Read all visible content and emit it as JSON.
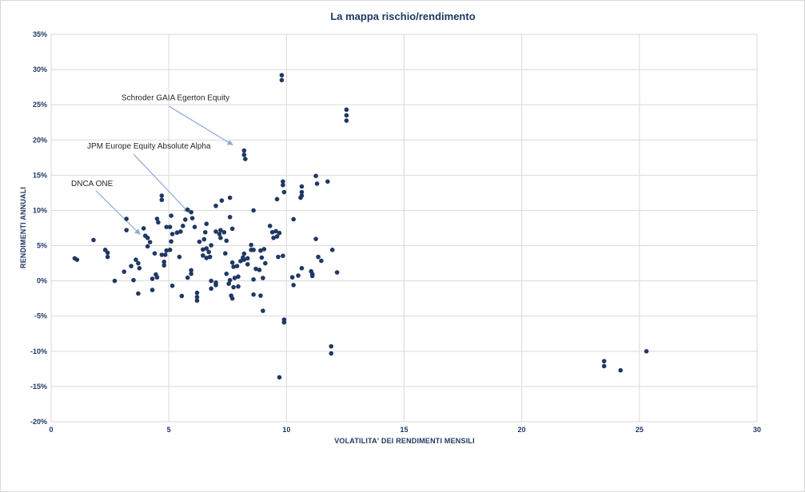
{
  "chart_data": {
    "type": "scatter",
    "title": "La mappa rischio/rendimento",
    "xlabel": "VOLATILITA' DEI RENDIMENTI MENSILI",
    "ylabel": "RENDIMENTI ANNUALI",
    "xlim": [
      0,
      30
    ],
    "ylim": [
      -20,
      35
    ],
    "grid": true,
    "legend": "none",
    "x_ticks": [
      {
        "value": 0,
        "label": "0"
      },
      {
        "value": 5,
        "label": "5"
      },
      {
        "value": 10,
        "label": "10"
      },
      {
        "value": 15,
        "label": "15"
      },
      {
        "value": 20,
        "label": "20"
      },
      {
        "value": 25,
        "label": "25"
      },
      {
        "value": 30,
        "label": "30"
      }
    ],
    "y_ticks": [
      {
        "value": 35,
        "label": "35%"
      },
      {
        "value": 30,
        "label": "30%"
      },
      {
        "value": 25,
        "label": "25%"
      },
      {
        "value": 20,
        "label": "20%"
      },
      {
        "value": 15,
        "label": "15%"
      },
      {
        "value": 10,
        "label": "10%"
      },
      {
        "value": 5,
        "label": "5%"
      },
      {
        "value": 0,
        "label": "0%"
      },
      {
        "value": -5,
        "label": "-5%"
      },
      {
        "value": -10,
        "label": "-10%"
      },
      {
        "value": -15,
        "label": "-15%"
      },
      {
        "value": -20,
        "label": "-20%"
      }
    ],
    "colors": {
      "point": "#1F3864",
      "grid": "#D9D9D9",
      "axis_text": "#1F3864",
      "title_text": "#1F3864",
      "annotation_text": "#262626",
      "arrow": "#8FAADC"
    },
    "annotations": [
      {
        "label": "Schroder GAIA Egerton Equity",
        "text_x": 2.99,
        "text_y": 26.0,
        "arrow": {
          "x1": 5.0,
          "y1": 24.8,
          "x2": 7.72,
          "y2": 19.3
        }
      },
      {
        "label": "JPM Europe Equity Absolute Alpha",
        "text_x": 1.53,
        "text_y": 19.1,
        "arrow": {
          "x1": 3.5,
          "y1": 18.0,
          "x2": 5.85,
          "y2": 9.7
        }
      },
      {
        "label": "DNCA ONE",
        "text_x": 0.85,
        "text_y": 13.8,
        "arrow": {
          "x1": 1.9,
          "y1": 12.8,
          "x2": 3.78,
          "y2": 6.6
        }
      }
    ],
    "points": [
      [
        1.0,
        3.2
      ],
      [
        1.1,
        3.0
      ],
      [
        1.8,
        5.8
      ],
      [
        2.3,
        4.4
      ],
      [
        2.4,
        4.0
      ],
      [
        2.4,
        3.4
      ],
      [
        2.7,
        0.0
      ],
      [
        3.1,
        1.3
      ],
      [
        3.2,
        8.8
      ],
      [
        3.2,
        7.2
      ],
      [
        3.4,
        2.1
      ],
      [
        3.5,
        0.1
      ],
      [
        3.6,
        3.0
      ],
      [
        3.7,
        2.5
      ],
      [
        3.75,
        1.8
      ],
      [
        3.7,
        -1.8
      ],
      [
        3.93,
        7.45
      ],
      [
        4.0,
        6.4
      ],
      [
        4.1,
        6.1
      ],
      [
        4.2,
        5.5
      ],
      [
        4.1,
        4.9
      ],
      [
        4.3,
        -1.3
      ],
      [
        4.4,
        3.9
      ],
      [
        4.3,
        0.3
      ],
      [
        4.45,
        0.9
      ],
      [
        4.5,
        0.5
      ],
      [
        4.5,
        8.8
      ],
      [
        4.55,
        8.3
      ],
      [
        4.7,
        12.1
      ],
      [
        4.7,
        11.5
      ],
      [
        4.7,
        3.7
      ],
      [
        4.85,
        3.7
      ],
      [
        4.8,
        2.7
      ],
      [
        4.8,
        2.2
      ],
      [
        4.9,
        4.3
      ],
      [
        5.05,
        4.4
      ],
      [
        4.9,
        7.65
      ],
      [
        5.05,
        7.65
      ],
      [
        5.1,
        9.25
      ],
      [
        5.15,
        6.65
      ],
      [
        5.35,
        6.85
      ],
      [
        5.5,
        7.0
      ],
      [
        5.1,
        5.6
      ],
      [
        5.45,
        3.4
      ],
      [
        5.15,
        -0.7
      ],
      [
        5.55,
        -2.15
      ],
      [
        5.6,
        7.8
      ],
      [
        5.7,
        8.7
      ],
      [
        5.8,
        10.1
      ],
      [
        5.95,
        9.75
      ],
      [
        6.0,
        8.9
      ],
      [
        6.1,
        7.65
      ],
      [
        5.95,
        1.5
      ],
      [
        5.95,
        1.0
      ],
      [
        5.8,
        0.45
      ],
      [
        6.2,
        -1.7
      ],
      [
        6.2,
        -2.3
      ],
      [
        6.2,
        -2.8
      ],
      [
        6.3,
        5.55
      ],
      [
        6.5,
        5.9
      ],
      [
        6.55,
        6.9
      ],
      [
        6.6,
        8.1
      ],
      [
        6.45,
        4.45
      ],
      [
        6.6,
        4.6
      ],
      [
        6.7,
        4.1
      ],
      [
        6.8,
        5.05
      ],
      [
        6.45,
        3.6
      ],
      [
        6.6,
        3.25
      ],
      [
        6.75,
        3.4
      ],
      [
        6.8,
        0.0
      ],
      [
        7.0,
        -0.25
      ],
      [
        6.8,
        -1.1
      ],
      [
        7.0,
        -0.6
      ],
      [
        7.0,
        10.65
      ],
      [
        7.25,
        11.4
      ],
      [
        7.6,
        11.8
      ],
      [
        7.0,
        7.0
      ],
      [
        7.2,
        7.2
      ],
      [
        7.15,
        6.65
      ],
      [
        7.35,
        6.9
      ],
      [
        7.2,
        6.1
      ],
      [
        7.45,
        5.7
      ],
      [
        7.6,
        9.05
      ],
      [
        7.7,
        7.4
      ],
      [
        7.4,
        3.9
      ],
      [
        7.7,
        2.6
      ],
      [
        7.75,
        2.0
      ],
      [
        7.9,
        2.1
      ],
      [
        7.45,
        1.0
      ],
      [
        7.6,
        0.1
      ],
      [
        7.8,
        0.4
      ],
      [
        7.95,
        0.6
      ],
      [
        7.55,
        -0.4
      ],
      [
        7.75,
        -0.9
      ],
      [
        7.95,
        -0.8
      ],
      [
        7.65,
        -2.1
      ],
      [
        7.7,
        -2.5
      ],
      [
        8.05,
        2.8
      ],
      [
        8.2,
        3.0
      ],
      [
        8.2,
        18.5
      ],
      [
        8.2,
        17.9
      ],
      [
        8.25,
        17.3
      ],
      [
        8.2,
        3.85
      ],
      [
        8.15,
        3.3
      ],
      [
        8.35,
        3.2
      ],
      [
        8.35,
        2.35
      ],
      [
        8.5,
        5.1
      ],
      [
        8.5,
        4.4
      ],
      [
        8.6,
        4.4
      ],
      [
        8.9,
        4.3
      ],
      [
        9.05,
        4.5
      ],
      [
        8.6,
        10.0
      ],
      [
        8.7,
        1.7
      ],
      [
        8.85,
        1.55
      ],
      [
        8.6,
        0.2
      ],
      [
        9.0,
        0.4
      ],
      [
        8.6,
        -1.95
      ],
      [
        8.9,
        -2.1
      ],
      [
        9.0,
        -4.25
      ],
      [
        8.95,
        3.3
      ],
      [
        9.1,
        2.5
      ],
      [
        9.3,
        7.8
      ],
      [
        9.4,
        6.9
      ],
      [
        9.55,
        7.05
      ],
      [
        9.45,
        6.1
      ],
      [
        9.6,
        6.3
      ],
      [
        9.7,
        6.8
      ],
      [
        9.65,
        3.4
      ],
      [
        9.85,
        3.55
      ],
      [
        9.8,
        29.2
      ],
      [
        9.8,
        28.5
      ],
      [
        9.6,
        11.6
      ],
      [
        9.85,
        14.1
      ],
      [
        9.85,
        13.6
      ],
      [
        9.9,
        12.6
      ],
      [
        9.9,
        -5.5
      ],
      [
        9.9,
        -5.9
      ],
      [
        9.7,
        -13.7
      ],
      [
        10.25,
        0.5
      ],
      [
        10.5,
        0.75
      ],
      [
        10.3,
        -0.6
      ],
      [
        10.3,
        8.75
      ],
      [
        10.65,
        13.4
      ],
      [
        10.65,
        12.6
      ],
      [
        10.65,
        12.1
      ],
      [
        10.6,
        11.8
      ],
      [
        10.65,
        1.8
      ],
      [
        11.05,
        1.35
      ],
      [
        11.1,
        0.95
      ],
      [
        11.1,
        0.7
      ],
      [
        11.25,
        14.9
      ],
      [
        11.3,
        13.8
      ],
      [
        11.75,
        14.1
      ],
      [
        11.25,
        5.95
      ],
      [
        11.35,
        3.4
      ],
      [
        11.48,
        2.85
      ],
      [
        11.95,
        4.4
      ],
      [
        12.15,
        1.2
      ],
      [
        11.9,
        -9.3
      ],
      [
        11.9,
        -10.3
      ],
      [
        12.55,
        24.3
      ],
      [
        12.55,
        23.5
      ],
      [
        12.55,
        22.75
      ],
      [
        23.5,
        -11.4
      ],
      [
        23.5,
        -12.1
      ],
      [
        24.2,
        -12.7
      ],
      [
        25.3,
        -10.0
      ]
    ]
  }
}
